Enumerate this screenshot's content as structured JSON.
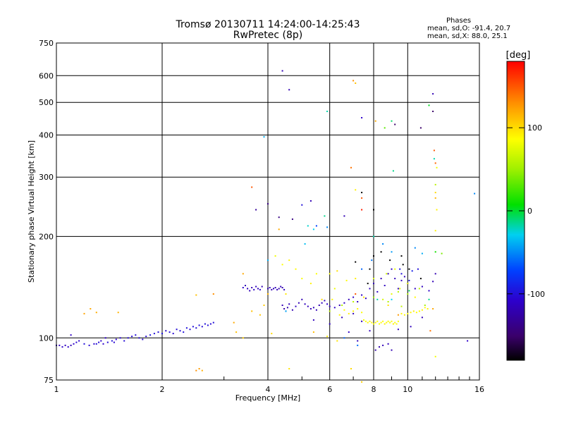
{
  "title": {
    "line1": "Tromsø 20130711 14:24:00-14:25:43",
    "line2": "RwPretec (8p)"
  },
  "phase_info": {
    "label": "Phases",
    "stats_o": "mean, sd,O: -91.4, 20.7",
    "stats_x": "mean, sd,X:  88.0, 25.1"
  },
  "colorbar": {
    "unit_label": "[deg]",
    "ticks": [
      "100",
      "0",
      "-100"
    ],
    "tick_values": [
      100,
      0,
      -100
    ],
    "range": [
      -180,
      180
    ]
  },
  "chart_data": {
    "type": "scatter",
    "title": "Tromsø 20130711 14:24:00-14:25:43",
    "subtitle": "RwPretec (8p)",
    "xlabel": "Frequency [MHz]",
    "ylabel": "Stationary phase Virtual Height [km]",
    "x_scale": "log",
    "y_scale": "log",
    "xlim": [
      1,
      16
    ],
    "ylim": [
      75,
      750
    ],
    "x_ticks": [
      1,
      2,
      4,
      6,
      8,
      10,
      16
    ],
    "x_tick_labels": [
      "1",
      "2",
      "4",
      "6",
      "8",
      "10",
      "16"
    ],
    "y_ticks": [
      75,
      100,
      200,
      300,
      400,
      500,
      600,
      750
    ],
    "y_tick_labels": [
      "75",
      "100",
      "200",
      "300",
      "400",
      "500",
      "600",
      "750"
    ],
    "grid": true,
    "colorbar_variable": "phase [deg]",
    "points": [
      [
        1.0,
        95,
        -120
      ],
      [
        1.02,
        95,
        -118
      ],
      [
        1.04,
        94,
        -110
      ],
      [
        1.06,
        95,
        -115
      ],
      [
        1.08,
        94,
        -112
      ],
      [
        1.1,
        95,
        -120
      ],
      [
        1.12,
        96,
        -110
      ],
      [
        1.14,
        97,
        -105
      ],
      [
        1.1,
        102,
        -112
      ],
      [
        1.16,
        98,
        -110
      ],
      [
        1.2,
        96,
        -100
      ],
      [
        1.24,
        95,
        -105
      ],
      [
        1.28,
        96,
        -108
      ],
      [
        1.32,
        97,
        -104
      ],
      [
        1.36,
        96,
        -110
      ],
      [
        1.4,
        97,
        -102
      ],
      [
        1.44,
        98,
        -100
      ],
      [
        1.48,
        99,
        -108
      ],
      [
        1.52,
        100,
        -106
      ],
      [
        1.56,
        98,
        -102
      ],
      [
        1.6,
        100,
        -104
      ],
      [
        1.64,
        101,
        -105
      ],
      [
        1.68,
        102,
        -100
      ],
      [
        1.72,
        100,
        -103
      ],
      [
        1.76,
        99,
        -106
      ],
      [
        1.8,
        101,
        -104
      ],
      [
        1.3,
        96,
        -100
      ],
      [
        1.34,
        98,
        -108
      ],
      [
        1.46,
        97,
        -106
      ],
      [
        1.38,
        100,
        -110
      ],
      [
        1.85,
        102,
        -98
      ],
      [
        1.9,
        103,
        -100
      ],
      [
        1.95,
        104,
        -102
      ],
      [
        2.0,
        103,
        -98
      ],
      [
        2.05,
        105,
        -104
      ],
      [
        2.1,
        104,
        -100
      ],
      [
        2.15,
        103,
        -106
      ],
      [
        2.2,
        106,
        -102
      ],
      [
        2.25,
        105,
        -104
      ],
      [
        2.3,
        104,
        -100
      ],
      [
        2.35,
        107,
        -98
      ],
      [
        2.4,
        106,
        -104
      ],
      [
        2.45,
        108,
        -100
      ],
      [
        2.5,
        107,
        -102
      ],
      [
        2.55,
        109,
        -98
      ],
      [
        2.6,
        108,
        -104
      ],
      [
        2.65,
        110,
        -100
      ],
      [
        2.7,
        109,
        -102
      ],
      [
        2.75,
        110,
        -105
      ],
      [
        2.8,
        111,
        -100
      ],
      [
        3.5,
        140,
        -115
      ],
      [
        3.55,
        138,
        -118
      ],
      [
        3.6,
        141,
        -120
      ],
      [
        3.65,
        139,
        -112
      ],
      [
        3.7,
        142,
        -116
      ],
      [
        3.75,
        140,
        -118
      ],
      [
        3.8,
        139,
        -112
      ],
      [
        3.4,
        141,
        -110
      ],
      [
        3.45,
        143,
        -118
      ],
      [
        3.85,
        142,
        -120
      ],
      [
        4.0,
        140,
        -120
      ],
      [
        4.05,
        141,
        -118
      ],
      [
        4.1,
        139,
        -122
      ],
      [
        4.15,
        140,
        -116
      ],
      [
        4.2,
        141,
        -120
      ],
      [
        4.25,
        139,
        -118
      ],
      [
        4.3,
        140,
        -120
      ],
      [
        4.35,
        142,
        -118
      ],
      [
        4.4,
        141,
        -122
      ],
      [
        4.45,
        139,
        -116
      ],
      [
        4.4,
        125,
        -120
      ],
      [
        4.45,
        122,
        -125
      ],
      [
        4.5,
        120,
        -118
      ],
      [
        4.55,
        123,
        -122
      ],
      [
        4.6,
        126,
        -118
      ],
      [
        4.7,
        121,
        -120
      ],
      [
        4.8,
        124,
        -115
      ],
      [
        4.9,
        127,
        -118
      ],
      [
        5.0,
        130,
        -120
      ],
      [
        5.1,
        126,
        -116
      ],
      [
        5.2,
        124,
        -118
      ],
      [
        5.3,
        122,
        -120
      ],
      [
        5.4,
        123,
        -116
      ],
      [
        5.5,
        121,
        -118
      ],
      [
        5.6,
        125,
        -120
      ],
      [
        5.7,
        127,
        -115
      ],
      [
        5.8,
        129,
        -118
      ],
      [
        5.9,
        126,
        -110
      ],
      [
        6.0,
        124,
        -116
      ],
      [
        6.2,
        123,
        -112
      ],
      [
        6.4,
        125,
        -118
      ],
      [
        6.6,
        127,
        -114
      ],
      [
        6.8,
        130,
        -118
      ],
      [
        7.0,
        132,
        -112
      ],
      [
        7.2,
        128,
        -116
      ],
      [
        7.4,
        134,
        -114
      ],
      [
        7.6,
        131,
        -118
      ],
      [
        7.8,
        140,
        -116
      ],
      [
        8.0,
        145,
        -118
      ],
      [
        8.2,
        137,
        -112
      ],
      [
        8.4,
        150,
        -120
      ],
      [
        8.6,
        143,
        -115
      ],
      [
        8.8,
        155,
        -118
      ],
      [
        9.0,
        160,
        -112
      ],
      [
        9.2,
        150,
        -116
      ],
      [
        9.4,
        140,
        -118
      ],
      [
        9.6,
        148,
        -114
      ],
      [
        9.8,
        152,
        -116
      ],
      [
        10.0,
        145,
        -118
      ],
      [
        10.5,
        140,
        -114
      ],
      [
        11.0,
        142,
        -116
      ],
      [
        11.5,
        138,
        -112
      ],
      [
        11.8,
        147,
        -118
      ],
      [
        12.0,
        155,
        -120
      ],
      [
        8.1,
        92,
        -125
      ],
      [
        8.3,
        94,
        -122
      ],
      [
        8.5,
        95,
        -118
      ],
      [
        9.0,
        92,
        -120
      ],
      [
        8.8,
        96,
        -116
      ],
      [
        7.2,
        98,
        -118
      ],
      [
        6.0,
        110,
        -114
      ],
      [
        6.5,
        115,
        -116
      ],
      [
        7.0,
        118,
        -120
      ],
      [
        7.4,
        112,
        -118
      ],
      [
        5.4,
        113,
        -116
      ],
      [
        6.8,
        104,
        -112
      ],
      [
        7.8,
        105,
        -118
      ],
      [
        9.4,
        106,
        -114
      ],
      [
        10.2,
        108,
        -116
      ],
      [
        11.0,
        115,
        -118
      ],
      [
        7.5,
        113,
        80
      ],
      [
        7.6,
        112,
        85
      ],
      [
        7.7,
        111,
        90
      ],
      [
        7.8,
        112,
        82
      ],
      [
        7.9,
        111,
        88
      ],
      [
        8.0,
        110,
        84
      ],
      [
        8.1,
        111,
        90
      ],
      [
        8.2,
        112,
        86
      ],
      [
        8.3,
        110,
        82
      ],
      [
        8.4,
        111,
        88
      ],
      [
        8.5,
        112,
        85
      ],
      [
        8.6,
        110,
        90
      ],
      [
        8.7,
        111,
        84
      ],
      [
        8.8,
        112,
        88
      ],
      [
        8.9,
        111,
        82
      ],
      [
        9.0,
        112,
        86
      ],
      [
        9.1,
        110,
        90
      ],
      [
        9.2,
        111,
        84
      ],
      [
        9.3,
        110,
        88
      ],
      [
        9.4,
        112,
        85
      ],
      [
        7.0,
        120,
        90
      ],
      [
        7.2,
        122,
        88
      ],
      [
        6.8,
        118,
        92
      ],
      [
        6.6,
        121,
        86
      ],
      [
        6.4,
        117,
        90
      ],
      [
        7.4,
        119,
        84
      ],
      [
        9.6,
        118,
        88
      ],
      [
        9.8,
        117,
        90
      ],
      [
        10.0,
        118,
        86
      ],
      [
        10.2,
        119,
        88
      ],
      [
        10.4,
        120,
        92
      ],
      [
        10.6,
        119,
        86
      ],
      [
        10.8,
        120,
        88
      ],
      [
        11.0,
        121,
        90
      ],
      [
        11.2,
        123,
        86
      ],
      [
        11.4,
        122,
        88
      ],
      [
        8.5,
        130,
        70
      ],
      [
        9.0,
        135,
        75
      ],
      [
        9.5,
        140,
        72
      ],
      [
        10.0,
        145,
        78
      ],
      [
        8.0,
        150,
        72
      ],
      [
        8.7,
        155,
        70
      ],
      [
        9.2,
        160,
        76
      ],
      [
        5.0,
        150,
        82
      ],
      [
        4.8,
        160,
        86
      ],
      [
        4.6,
        170,
        90
      ],
      [
        4.4,
        165,
        85
      ],
      [
        4.2,
        175,
        80
      ],
      [
        5.5,
        155,
        84
      ],
      [
        5.3,
        145,
        90
      ],
      [
        6.2,
        140,
        78
      ],
      [
        6.0,
        155,
        82
      ],
      [
        6.7,
        148,
        86
      ],
      [
        7.1,
        150,
        92
      ],
      [
        4.5,
        135,
        95
      ],
      [
        5.7,
        130,
        100
      ],
      [
        6.3,
        158,
        98
      ],
      [
        7.5,
        132,
        94
      ],
      [
        8.8,
        125,
        96
      ],
      [
        10.5,
        132,
        88
      ],
      [
        1.25,
        122,
        120
      ],
      [
        1.3,
        119,
        118
      ],
      [
        1.5,
        119,
        115
      ],
      [
        1.2,
        118,
        122
      ],
      [
        2.5,
        80,
        130
      ],
      [
        2.55,
        81,
        125
      ],
      [
        2.6,
        80,
        118
      ],
      [
        2.5,
        134,
        110
      ],
      [
        2.8,
        135,
        130
      ],
      [
        3.2,
        111,
        120
      ],
      [
        3.6,
        120,
        110
      ],
      [
        3.8,
        117,
        108
      ],
      [
        3.9,
        125,
        106
      ],
      [
        3.4,
        155,
        120
      ],
      [
        4.3,
        210,
        120
      ],
      [
        4.0,
        135,
        115
      ],
      [
        9.4,
        117,
        125
      ],
      [
        11.8,
        122,
        120
      ],
      [
        11.6,
        105,
        140
      ],
      [
        7.1,
        135,
        150
      ],
      [
        3.25,
        104,
        110
      ],
      [
        3.4,
        100,
        104
      ],
      [
        4.1,
        103,
        100
      ],
      [
        4.6,
        81,
        96
      ],
      [
        6.9,
        81,
        100
      ],
      [
        7.4,
        74,
        104
      ],
      [
        5.4,
        104,
        112
      ],
      [
        6.3,
        98,
        96
      ],
      [
        5.9,
        101,
        92
      ],
      [
        6.1,
        130,
        88
      ],
      [
        6.0,
        120,
        60
      ],
      [
        6.5,
        125,
        55
      ],
      [
        7.0,
        128,
        60
      ],
      [
        8.0,
        132,
        50
      ],
      [
        8.8,
        128,
        55
      ],
      [
        9.4,
        137,
        58
      ],
      [
        10.0,
        135,
        52
      ],
      [
        10.8,
        140,
        60
      ],
      [
        11.2,
        125,
        54
      ],
      [
        9.6,
        124,
        62
      ],
      [
        8.2,
        130,
        -20
      ],
      [
        9.0,
        130,
        -30
      ],
      [
        10.1,
        138,
        -10
      ],
      [
        11.5,
        130,
        -15
      ],
      [
        12.0,
        180,
        10
      ],
      [
        8.0,
        200,
        -20
      ],
      [
        5.4,
        210,
        -30
      ],
      [
        5.2,
        215,
        -25
      ],
      [
        4.5,
        120,
        -40
      ],
      [
        5.1,
        190,
        -35
      ],
      [
        4.0,
        170,
        -40
      ],
      [
        8.5,
        190,
        -50
      ],
      [
        9.0,
        180,
        -45
      ],
      [
        10.5,
        185,
        -50
      ],
      [
        11.0,
        178,
        -40
      ],
      [
        12.5,
        178,
        40
      ],
      [
        7.4,
        160,
        -60
      ],
      [
        7.9,
        170,
        -55
      ],
      [
        6.6,
        100,
        -60
      ],
      [
        7.2,
        95,
        -58
      ],
      [
        7.7,
        145,
        -200
      ],
      [
        8.4,
        180,
        -200
      ],
      [
        9.6,
        175,
        -210
      ],
      [
        9.7,
        165,
        -200
      ],
      [
        10.1,
        160,
        -210
      ],
      [
        10.9,
        150,
        -200
      ],
      [
        8.9,
        170,
        -210
      ],
      [
        7.8,
        160,
        -220
      ],
      [
        8.0,
        175,
        -220
      ],
      [
        7.1,
        168,
        -210
      ],
      [
        4.4,
        620,
        -120
      ],
      [
        4.6,
        545,
        -120
      ],
      [
        5.9,
        470,
        -20
      ],
      [
        7.0,
        580,
        130
      ],
      [
        7.1,
        570,
        110
      ],
      [
        7.4,
        450,
        -110
      ],
      [
        8.1,
        440,
        120
      ],
      [
        8.6,
        420,
        30
      ],
      [
        9.0,
        440,
        -10
      ],
      [
        9.2,
        430,
        -150
      ],
      [
        11.8,
        530,
        -120
      ],
      [
        11.8,
        470,
        -150
      ],
      [
        11.5,
        490,
        0
      ],
      [
        11.9,
        360,
        150
      ],
      [
        11.9,
        340,
        -20
      ],
      [
        12.0,
        330,
        145
      ],
      [
        12.1,
        320,
        80
      ],
      [
        10.9,
        420,
        -150
      ],
      [
        9.1,
        313,
        -15
      ],
      [
        7.4,
        270,
        -180
      ],
      [
        6.9,
        320,
        140
      ],
      [
        7.1,
        275,
        90
      ],
      [
        7.4,
        260,
        150
      ],
      [
        4.3,
        228,
        -140
      ],
      [
        4.7,
        225,
        -140
      ],
      [
        5.0,
        248,
        -100
      ],
      [
        5.8,
        230,
        -15
      ],
      [
        5.5,
        215,
        -70
      ],
      [
        5.9,
        213,
        -50
      ],
      [
        5.3,
        255,
        -120
      ],
      [
        3.6,
        280,
        150
      ],
      [
        3.7,
        240,
        -130
      ],
      [
        4.0,
        250,
        -140
      ],
      [
        3.9,
        395,
        -40
      ],
      [
        8.0,
        240,
        -180
      ],
      [
        6.6,
        230,
        -120
      ],
      [
        7.4,
        240,
        170
      ],
      [
        12.0,
        285,
        60
      ],
      [
        12.0,
        270,
        100
      ],
      [
        12.0,
        260,
        115
      ],
      [
        12.1,
        240,
        90
      ],
      [
        12.0,
        208,
        90
      ],
      [
        15.5,
        268,
        -50
      ],
      [
        14.8,
        98,
        -110
      ],
      [
        12.0,
        88,
        80
      ],
      [
        9.5,
        160,
        -95
      ],
      [
        9.6,
        155,
        -100
      ],
      [
        10.1,
        148,
        -95
      ],
      [
        10.3,
        158,
        -90
      ],
      [
        10.7,
        160,
        -100
      ]
    ]
  }
}
